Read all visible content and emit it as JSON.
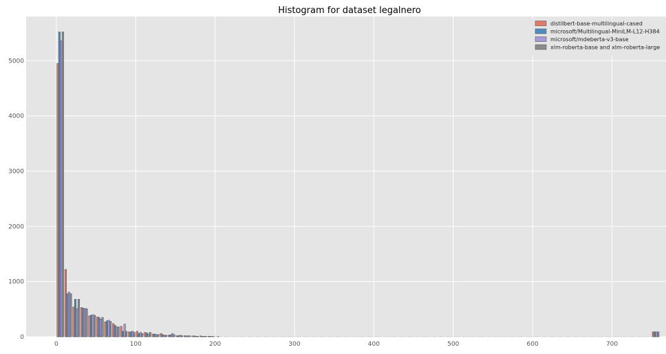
{
  "chart_data": {
    "type": "bar",
    "title": "Histogram for dataset legalnero",
    "xlabel": "",
    "ylabel": "",
    "xlim": [
      -38,
      768
    ],
    "ylim": [
      0,
      5800
    ],
    "x_ticks": [
      0,
      100,
      200,
      300,
      400,
      500,
      600,
      700
    ],
    "y_ticks": [
      0,
      1000,
      2000,
      3000,
      4000,
      5000
    ],
    "grid": true,
    "legend_position": "top-right",
    "bin_width": 10,
    "colors": {
      "background": "#e5e5e5",
      "grid": "#ffffff",
      "axis_text": "#555555",
      "title": "#000000"
    },
    "series": [
      {
        "name": "distilbert-base-multilingual-cased",
        "color": "#e07b6b",
        "values": [
          4950,
          1220,
          540,
          530,
          380,
          360,
          270,
          240,
          190,
          90,
          100,
          80,
          50,
          60,
          30,
          20,
          20,
          15,
          15,
          10,
          0,
          0,
          0,
          0,
          0,
          0,
          0,
          0,
          0,
          0,
          0,
          0,
          0,
          0,
          0,
          0,
          0,
          0,
          0,
          0,
          0,
          0,
          0,
          0,
          0,
          0,
          0,
          0,
          0,
          0,
          0,
          0,
          0,
          0,
          0,
          0,
          0,
          0,
          0,
          0,
          0,
          0,
          0,
          0,
          0,
          0,
          0,
          0,
          0,
          0,
          0,
          0,
          0,
          0,
          0,
          90
        ]
      },
      {
        "name": "microsoft/Multilingual-MiniLM-L12-H384",
        "color": "#4f8fbf",
        "values": [
          5520,
          780,
          680,
          520,
          390,
          350,
          290,
          210,
          100,
          90,
          60,
          70,
          50,
          40,
          35,
          20,
          15,
          15,
          10,
          8,
          5,
          0,
          0,
          0,
          0,
          0,
          0,
          0,
          0,
          0,
          0,
          0,
          0,
          0,
          0,
          0,
          0,
          0,
          0,
          0,
          0,
          0,
          0,
          0,
          0,
          0,
          0,
          0,
          0,
          0,
          0,
          0,
          0,
          0,
          0,
          0,
          0,
          0,
          0,
          0,
          0,
          0,
          0,
          0,
          0,
          0,
          0,
          0,
          0,
          0,
          0,
          0,
          0,
          0,
          0,
          90
        ]
      },
      {
        "name": "microsoft/mdeberta-v3-base",
        "color": "#a89ad6",
        "values": [
          5360,
          810,
          510,
          510,
          400,
          320,
          300,
          180,
          230,
          100,
          80,
          50,
          40,
          30,
          60,
          30,
          20,
          10,
          8,
          5,
          0,
          0,
          0,
          0,
          0,
          0,
          0,
          0,
          0,
          0,
          0,
          0,
          0,
          0,
          0,
          0,
          0,
          0,
          0,
          0,
          0,
          0,
          0,
          0,
          0,
          0,
          0,
          0,
          0,
          0,
          0,
          0,
          0,
          0,
          0,
          0,
          0,
          0,
          0,
          0,
          0,
          0,
          0,
          0,
          0,
          0,
          0,
          0,
          0,
          0,
          0,
          0,
          0,
          0,
          0,
          90
        ]
      },
      {
        "name": "xlm-roberta-base and xlm-roberta-large",
        "color": "#8c8c8c",
        "values": [
          5520,
          780,
          680,
          510,
          390,
          350,
          280,
          180,
          100,
          80,
          60,
          80,
          40,
          30,
          40,
          20,
          15,
          10,
          10,
          5,
          0,
          0,
          0,
          0,
          0,
          0,
          0,
          0,
          0,
          0,
          0,
          0,
          0,
          0,
          0,
          0,
          0,
          0,
          0,
          0,
          0,
          0,
          0,
          0,
          0,
          0,
          0,
          0,
          0,
          0,
          0,
          0,
          0,
          0,
          0,
          0,
          0,
          0,
          0,
          0,
          0,
          0,
          0,
          0,
          0,
          0,
          0,
          0,
          0,
          0,
          0,
          0,
          0,
          0,
          0,
          90
        ]
      }
    ]
  }
}
